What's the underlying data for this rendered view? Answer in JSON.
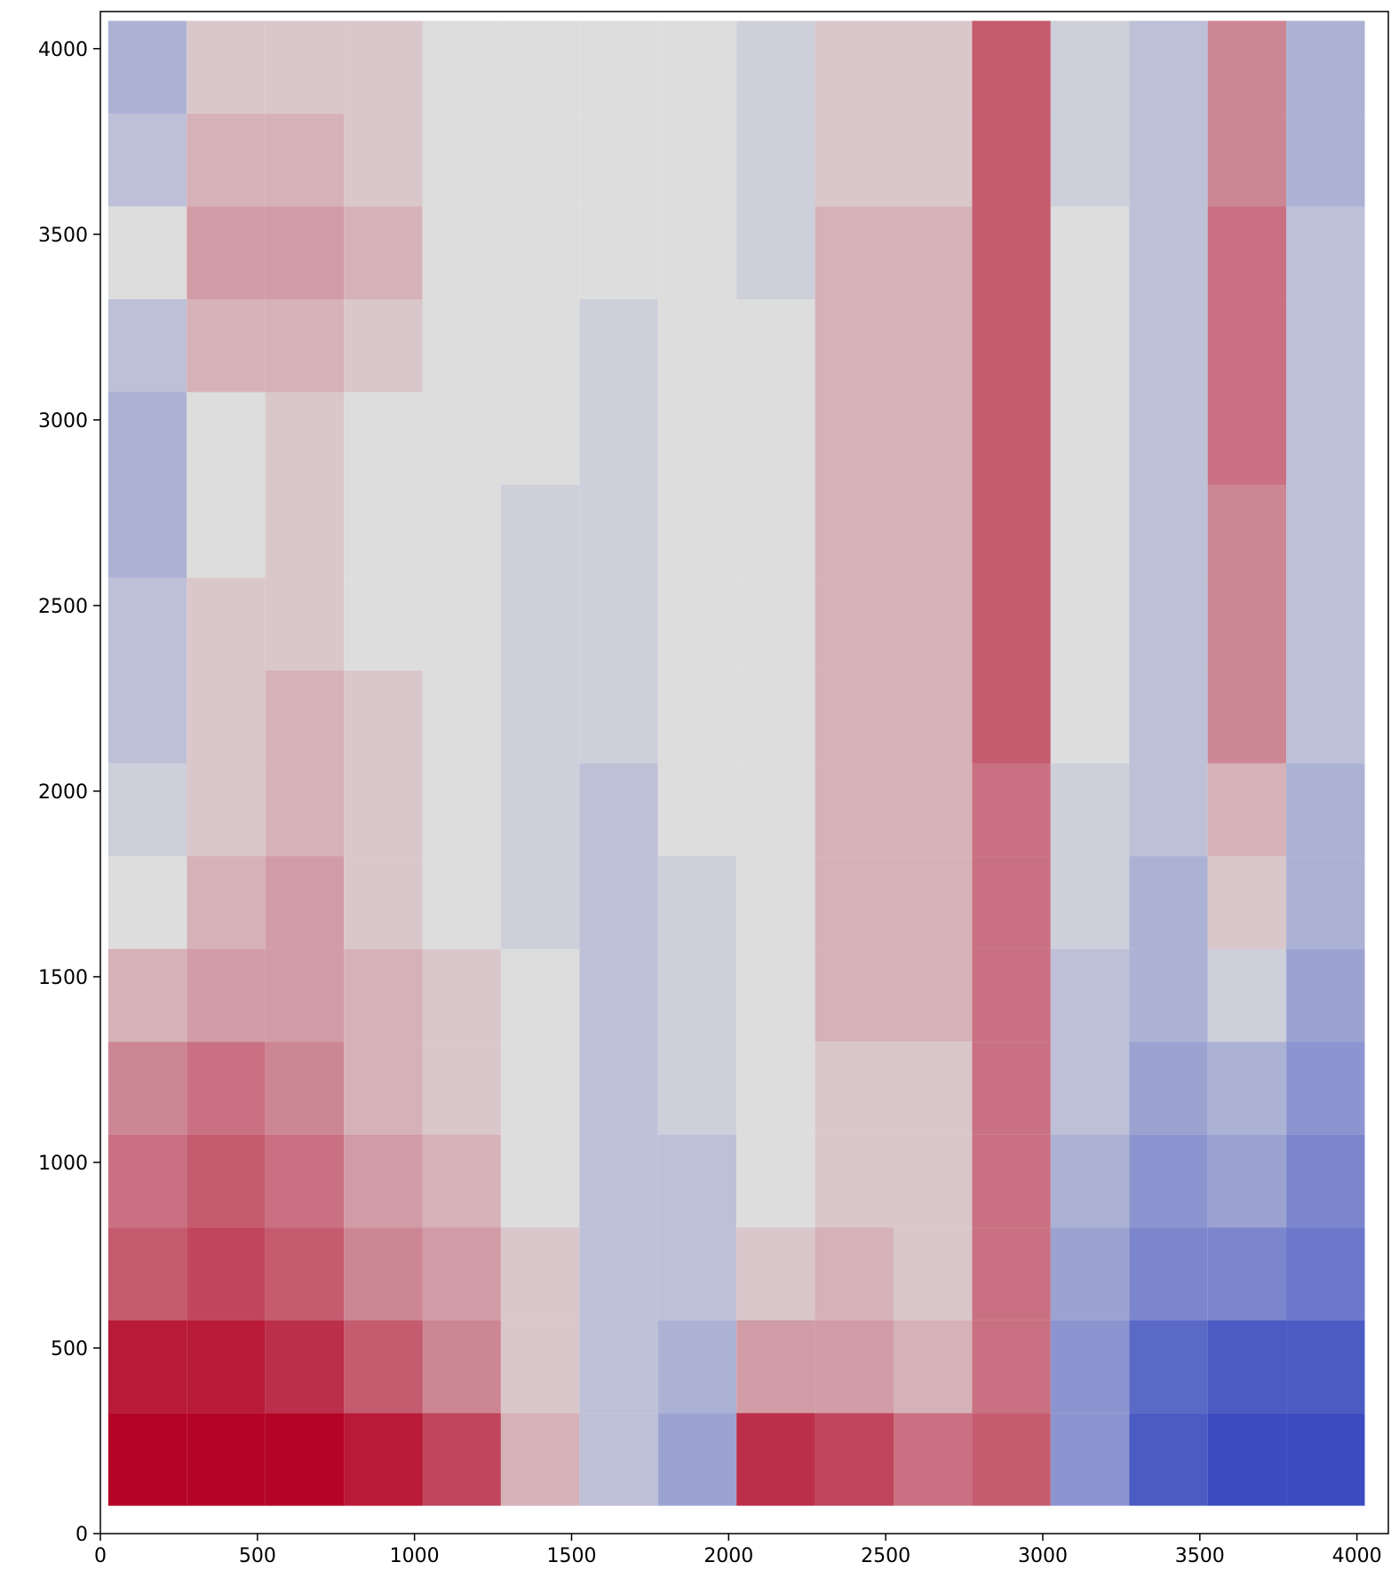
{
  "chart_data": {
    "type": "scatter",
    "x": [
      150,
      400,
      650,
      900,
      1150,
      1400,
      1650,
      1900,
      2150,
      2400,
      2650,
      2900,
      3150,
      3400,
      3650,
      3900
    ],
    "y": [
      200,
      450,
      700,
      950,
      1200,
      1450,
      1700,
      1950,
      2200,
      2450,
      2700,
      2950,
      3200,
      3450,
      3700,
      3950
    ],
    "values": [
      [
        1,
        1,
        1,
        0.9,
        0.7,
        0.2,
        -0.2,
        -0.4,
        0.8,
        0.7,
        0.5,
        0.6,
        -0.5,
        -0.9,
        -1,
        -1
      ],
      [
        0.9,
        0.9,
        0.8,
        0.6,
        0.4,
        0.1,
        -0.2,
        -0.3,
        0.3,
        0.3,
        0.2,
        0.5,
        -0.5,
        -0.8,
        -0.9,
        -0.9
      ],
      [
        0.6,
        0.7,
        0.6,
        0.4,
        0.3,
        0.1,
        -0.2,
        -0.2,
        0.1,
        0.2,
        0.1,
        0.5,
        -0.4,
        -0.6,
        -0.6,
        -0.7
      ],
      [
        0.5,
        0.6,
        0.5,
        0.3,
        0.2,
        0,
        -0.2,
        -0.2,
        0,
        0.1,
        0.1,
        0.5,
        -0.3,
        -0.5,
        -0.4,
        -0.6
      ],
      [
        0.4,
        0.5,
        0.4,
        0.2,
        0.1,
        0,
        -0.2,
        -0.1,
        0,
        0.1,
        0.1,
        0.5,
        -0.2,
        -0.4,
        -0.3,
        -0.5
      ],
      [
        0.2,
        0.3,
        0.3,
        0.2,
        0.1,
        0,
        -0.2,
        -0.1,
        0,
        0.2,
        0.2,
        0.5,
        -0.2,
        -0.3,
        -0.1,
        -0.4
      ],
      [
        0,
        0.2,
        0.3,
        0.1,
        0,
        -0.1,
        -0.2,
        -0.1,
        0,
        0.2,
        0.2,
        0.5,
        -0.1,
        -0.3,
        0.1,
        -0.3
      ],
      [
        -0.1,
        0.1,
        0.2,
        0.1,
        0,
        -0.1,
        -0.2,
        0,
        0,
        0.2,
        0.2,
        0.5,
        -0.1,
        -0.2,
        0.2,
        -0.3
      ],
      [
        -0.2,
        0.1,
        0.2,
        0.1,
        0,
        -0.1,
        -0.1,
        0,
        0,
        0.2,
        0.2,
        0.6,
        0,
        -0.2,
        0.4,
        -0.2
      ],
      [
        -0.2,
        0.1,
        0.1,
        0,
        0,
        -0.1,
        -0.1,
        0,
        0,
        0.2,
        0.2,
        0.6,
        0,
        -0.2,
        0.4,
        -0.2
      ],
      [
        -0.3,
        0,
        0.1,
        0,
        0,
        -0.1,
        -0.1,
        0,
        0,
        0.2,
        0.2,
        0.6,
        0,
        -0.2,
        0.4,
        -0.2
      ],
      [
        -0.3,
        0,
        0.1,
        0,
        0,
        0,
        -0.1,
        0,
        0,
        0.2,
        0.2,
        0.6,
        0,
        -0.2,
        0.5,
        -0.2
      ],
      [
        -0.2,
        0.2,
        0.2,
        0.1,
        0,
        0,
        -0.1,
        0,
        0,
        0.2,
        0.2,
        0.6,
        0,
        -0.2,
        0.5,
        -0.2
      ],
      [
        0,
        0.3,
        0.3,
        0.2,
        0,
        0,
        0,
        0,
        -0.1,
        0.2,
        0.2,
        0.6,
        0,
        -0.2,
        0.5,
        -0.2
      ],
      [
        -0.2,
        0.2,
        0.2,
        0.1,
        0,
        0,
        0,
        0,
        -0.1,
        0.1,
        0.1,
        0.6,
        -0.1,
        -0.2,
        0.4,
        -0.3
      ],
      [
        -0.3,
        0.1,
        0.1,
        0.1,
        0,
        0,
        0,
        0,
        -0.1,
        0.1,
        0.1,
        0.6,
        -0.1,
        -0.2,
        0.4,
        -0.3
      ]
    ],
    "colormap": [
      "#3b4cc0",
      "#dddddd",
      "#b40426"
    ],
    "clim": [
      -1,
      1
    ],
    "xlim": [
      0,
      4100
    ],
    "ylim": [
      0,
      4100
    ],
    "xticks": [
      0,
      500,
      1000,
      1500,
      2000,
      2500,
      3000,
      3500,
      4000
    ],
    "yticks": [
      0,
      500,
      1000,
      1500,
      2000,
      2500,
      3000,
      3500,
      4000
    ]
  }
}
